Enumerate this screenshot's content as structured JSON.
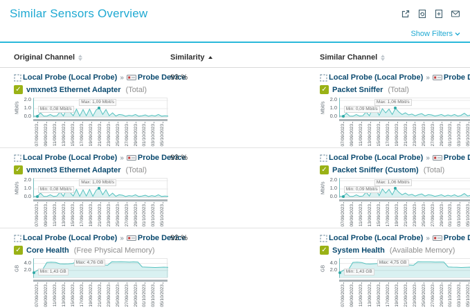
{
  "page": {
    "title": "Similar Sensors Overview",
    "show_filters": "Show Filters",
    "breadcrumb_separator": "»",
    "check_glyph": "✓",
    "toolbar_icons": [
      "open-new-window",
      "refresh-report",
      "add-report",
      "send-email"
    ]
  },
  "colors": {
    "accent": "#1fa9d2",
    "rule": "#29b8da",
    "link": "#0b4a6f",
    "sensor_ok_green": "#9ab216",
    "chart_line": "#54c1be",
    "chart_fill": "rgba(84,193,190,0.22)"
  },
  "table": {
    "columns": [
      {
        "label": "Original Channel",
        "sort": "both"
      },
      {
        "label": "Similarity",
        "sort": "asc"
      },
      {
        "label": "Similar Channel",
        "sort": "both"
      }
    ],
    "rows": [
      {
        "similarity": "93 %",
        "original": {
          "probe": "Local Probe (Local Probe)",
          "device": "Probe Device",
          "sensor": "vmxnet3 Ethernet Adapter",
          "channel": "(Total)",
          "chart": "traffic_original"
        },
        "similar": {
          "probe": "Local Probe (Local Probe)",
          "device": "Probe Device",
          "sensor": "Packet Sniffer",
          "channel": "(Total)",
          "chart": "traffic_similar"
        }
      },
      {
        "similarity": "93 %",
        "original": {
          "probe": "Local Probe (Local Probe)",
          "device": "Probe Device",
          "sensor": "vmxnet3 Ethernet Adapter",
          "channel": "(Total)",
          "chart": "traffic_original"
        },
        "similar": {
          "probe": "Local Probe (Local Probe)",
          "device": "Probe Device",
          "sensor": "Packet Sniffer (Custom)",
          "channel": "(Total)",
          "chart": "traffic_similar"
        }
      },
      {
        "similarity": "92 %",
        "original": {
          "probe": "Local Probe (Local Probe)",
          "device": "Probe Device",
          "sensor": "Core Health",
          "channel": "(Free Physical Memory)",
          "chart": "memory_original"
        },
        "similar": {
          "probe": "Local Probe (Local Probe)",
          "device": "Probe Device",
          "sensor": "System Health",
          "channel": "(Available Memory)",
          "chart": "memory_similar"
        }
      }
    ]
  },
  "chart_data": {
    "type": "area",
    "x_dates": [
      "07/09/2023",
      "09/09/2023",
      "11/09/2023",
      "13/09/2023",
      "15/09/2023",
      "17/09/2023",
      "19/09/2023",
      "21/09/2023",
      "23/09/2023",
      "25/09/2023",
      "27/09/2023",
      "29/09/2023",
      "01/10/2023",
      "03/10/2023",
      "05/10/2023"
    ],
    "charts": {
      "traffic_original": {
        "ylabel": "Mbit/s",
        "ymax": 2.25,
        "yticks": [
          {
            "label": "2.0",
            "value": 2
          },
          {
            "label": "1.0",
            "value": 1
          },
          {
            "label": "0.0",
            "value": 0
          }
        ],
        "values": [
          0.1,
          0.08,
          0.5,
          0.1,
          0.12,
          0.3,
          0.1,
          0.15,
          0.62,
          0.12,
          1.0,
          0.6,
          0.15,
          0.95,
          0.12,
          0.9,
          0.15,
          0.95,
          0.12,
          0.85,
          1.09,
          0.3,
          0.9,
          0.15,
          0.5,
          0.12,
          0.3,
          0.25,
          0.1,
          0.2,
          0.15,
          0.3,
          0.1,
          0.15,
          0.25,
          0.1,
          0.2,
          0.12,
          0.3,
          0.1,
          0.15,
          0.12
        ],
        "min": {
          "text": "Min: 0,08 Mbit/s",
          "left_pct": 3,
          "top_pct": 42,
          "index": 1
        },
        "max": {
          "text": "Max: 1,09 Mbit/s",
          "left_pct": 34,
          "top_pct": 5,
          "index": 20
        }
      },
      "traffic_similar": {
        "ylabel": "Mbit/s",
        "ymax": 2.25,
        "yticks": [
          {
            "label": "2.0",
            "value": 2
          },
          {
            "label": "1.0",
            "value": 1
          },
          {
            "label": "0.0",
            "value": 0
          }
        ],
        "values": [
          0.12,
          0.09,
          0.45,
          0.12,
          0.1,
          0.28,
          0.12,
          0.15,
          0.6,
          0.15,
          1.0,
          0.95,
          0.2,
          1.0,
          0.5,
          0.95,
          0.3,
          1.06,
          0.6,
          0.3,
          0.5,
          0.25,
          0.35,
          0.15,
          0.3,
          0.4,
          0.15,
          0.3,
          0.25,
          0.12,
          0.2,
          0.3,
          0.12,
          0.25,
          0.15,
          0.3,
          0.12,
          0.2,
          0.45,
          0.15,
          0.25,
          0.12
        ],
        "min": {
          "text": "Min: 0,09 Mbit/s",
          "left_pct": 3,
          "top_pct": 42,
          "index": 1
        },
        "max": {
          "text": "Max: 1,06 Mbit/s",
          "left_pct": 26,
          "top_pct": 5,
          "index": 17
        }
      },
      "memory_original": {
        "ylabel": "GB",
        "ymax": 5.3,
        "yticks": [
          {
            "label": "4.0",
            "value": 4
          },
          {
            "label": "2.0",
            "value": 2
          }
        ],
        "values": [
          1.43,
          2.2,
          2.25,
          4.3,
          4.35,
          4.3,
          3.9,
          3.85,
          3.9,
          4.0,
          4.76,
          4.7,
          4.72,
          4.68,
          3.6,
          3.5,
          3.55,
          3.5,
          4.5,
          4.45,
          4.5,
          4.45,
          4.4,
          4.45,
          4.4,
          3.0,
          2.95,
          2.9,
          2.85,
          2.9,
          2.95,
          2.9
        ],
        "min": {
          "text": "Min: 1,43 GB",
          "left_pct": 3,
          "top_pct": 50,
          "index": 0
        },
        "max": {
          "text": "Max: 4,76 GB",
          "left_pct": 30,
          "top_pct": 2,
          "index": 10
        }
      },
      "memory_similar": {
        "ylabel": "GB",
        "ymax": 5.3,
        "yticks": [
          {
            "label": "4.0",
            "value": 4
          },
          {
            "label": "2.0",
            "value": 2
          }
        ],
        "values": [
          1.43,
          2.2,
          2.25,
          4.3,
          4.35,
          4.28,
          3.9,
          3.85,
          3.92,
          4.0,
          4.75,
          4.7,
          4.72,
          4.66,
          3.6,
          3.52,
          3.55,
          3.5,
          4.5,
          4.45,
          4.48,
          4.45,
          4.4,
          4.42,
          4.4,
          3.0,
          2.95,
          2.92,
          2.85,
          2.9,
          2.95,
          2.9
        ],
        "min": {
          "text": "Min: 1,43 GB",
          "left_pct": 3,
          "top_pct": 50,
          "index": 0
        },
        "max": {
          "text": "Max: 4,75 GB",
          "left_pct": 28,
          "top_pct": 2,
          "index": 10
        }
      }
    }
  }
}
